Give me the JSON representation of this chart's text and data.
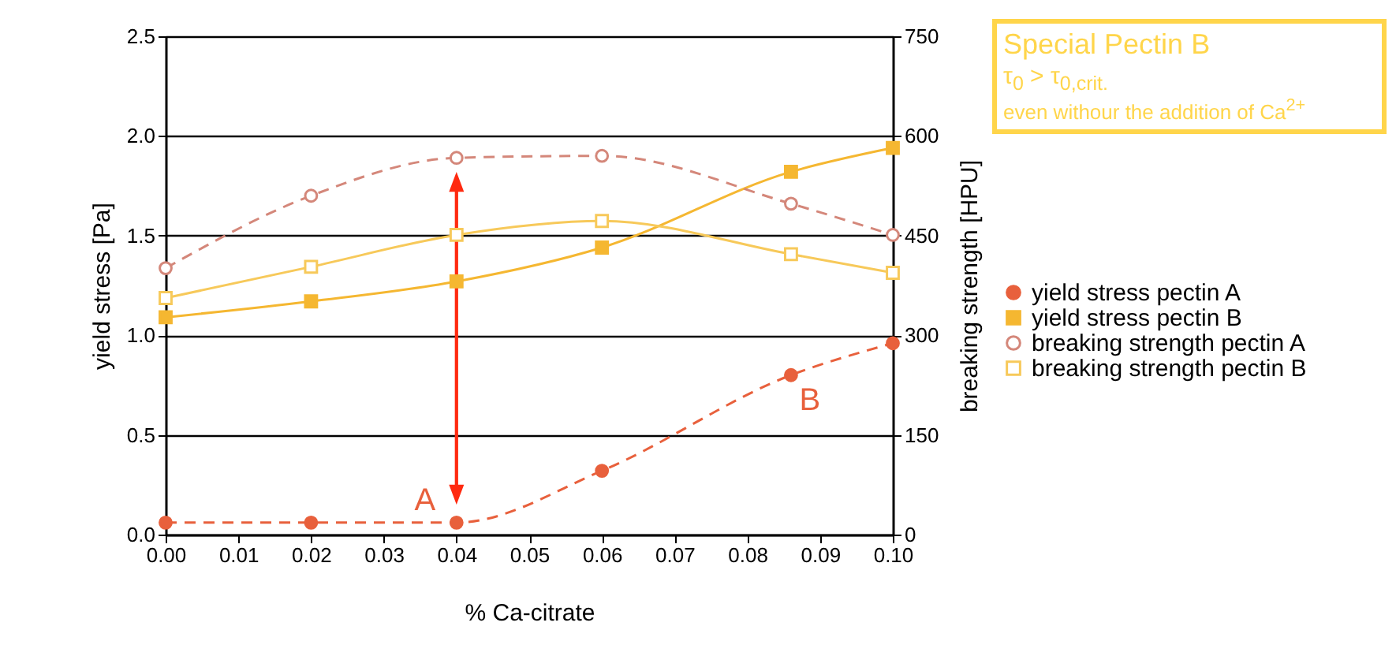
{
  "chart_data": {
    "type": "line",
    "xlabel": "% Ca-citrate",
    "ylabel": "yield stress [Pa]",
    "y2label": "breaking strength [HPU]",
    "x": [
      0,
      0.02,
      0.04,
      0.06,
      0.086,
      0.1
    ],
    "series": [
      {
        "name": "yield stress pectin A",
        "color": "#e8603c",
        "marker": "circle",
        "line_style": "dashed",
        "values": [
          0.06,
          0.06,
          0.06,
          0.32,
          0.8,
          0.96
        ]
      },
      {
        "name": "yield stress pectin B",
        "color": "#f5b731",
        "marker": "square",
        "line_style": "solid",
        "values": [
          1.09,
          1.17,
          1.27,
          1.44,
          1.82,
          1.94
        ]
      },
      {
        "name": "breaking strength pectin A",
        "color": "#d4877a",
        "marker": "circle",
        "line_style": "dashed",
        "axis": "y2",
        "values": [
          401,
          510,
          567,
          570,
          498,
          451
        ]
      },
      {
        "name": "breaking strength pectin B",
        "color": "#f7c95a",
        "marker": "square",
        "line_style": "solid",
        "axis": "y2",
        "values": [
          356,
          403,
          451,
          472,
          422,
          394
        ]
      }
    ],
    "xlim": [
      0,
      0.1
    ],
    "xticks": [
      {
        "value": 0,
        "label": "0.00"
      },
      {
        "value": 0.01,
        "label": "0.01"
      },
      {
        "value": 0.02,
        "label": "0.02"
      },
      {
        "value": 0.03,
        "label": "0.03"
      },
      {
        "value": 0.04,
        "label": "0.04"
      },
      {
        "value": 0.05,
        "label": "0.05"
      },
      {
        "value": 0.06,
        "label": "0.06"
      },
      {
        "value": 0.07,
        "label": "0.07"
      },
      {
        "value": 0.08,
        "label": "0.08"
      },
      {
        "value": 0.09,
        "label": "0.09"
      },
      {
        "value": 0.1,
        "label": "0.10"
      }
    ],
    "ylim": [
      0,
      2.5
    ],
    "yticks": [
      {
        "value": 0,
        "label": "0.0"
      },
      {
        "value": 0.5,
        "label": "0.5"
      },
      {
        "value": 1,
        "label": "1.0"
      },
      {
        "value": 1.5,
        "label": "1.5"
      },
      {
        "value": 2,
        "label": "2.0"
      },
      {
        "value": 2.5,
        "label": "2.5"
      }
    ],
    "y2lim": [
      0,
      750
    ],
    "y2ticks": [
      0,
      150,
      300,
      450,
      600,
      750
    ],
    "grid": "y",
    "legend": "right",
    "annotations": [
      "Special Pectin B",
      "τ$_{0}$ > τ$_{0,crit.}$",
      "even withour the addition of Ca$^{2+}$",
      {
        "text": "A",
        "x": 0.04,
        "y": 0.06
      },
      {
        "text": "B",
        "x": 0.086,
        "y": 0.8
      }
    ]
  }
}
